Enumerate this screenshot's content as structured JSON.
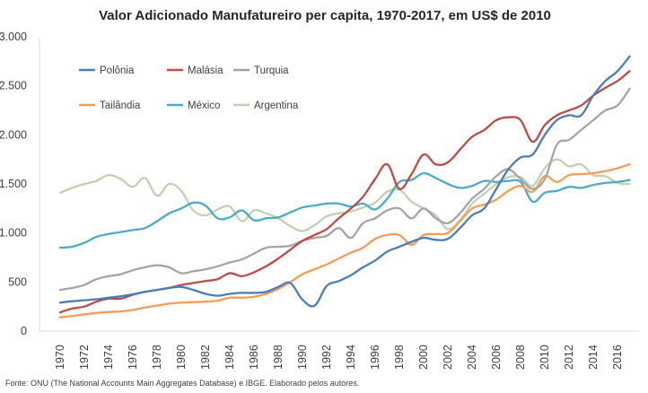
{
  "chart_data": {
    "type": "line",
    "title": "Valor Adicionado Manufatureiro per capita, 1970-2017, em US$ de 2010",
    "xlabel": "",
    "ylabel": "",
    "ylim": [
      0,
      3000
    ],
    "xlim": [
      1970,
      2017
    ],
    "grid": false,
    "legend_position": "top-left",
    "y_ticks": [
      0,
      500,
      1000,
      1500,
      2000,
      2500,
      3000
    ],
    "y_tick_labels": [
      "0",
      "500",
      "1.000",
      "1.500",
      "2.000",
      "2.500",
      "3.000"
    ],
    "x_tick_labels": [
      "1970",
      "1972",
      "1974",
      "1976",
      "1978",
      "1980",
      "1982",
      "1984",
      "1986",
      "1988",
      "1990",
      "1992",
      "1994",
      "1996",
      "1998",
      "2000",
      "2002",
      "2004",
      "2006",
      "2008",
      "2010",
      "2012",
      "2014",
      "2016"
    ],
    "x": [
      1970,
      1971,
      1972,
      1973,
      1974,
      1975,
      1976,
      1977,
      1978,
      1979,
      1980,
      1981,
      1982,
      1983,
      1984,
      1985,
      1986,
      1987,
      1988,
      1989,
      1990,
      1991,
      1992,
      1993,
      1994,
      1995,
      1996,
      1997,
      1998,
      1999,
      2000,
      2001,
      2002,
      2003,
      2004,
      2005,
      2006,
      2007,
      2008,
      2009,
      2010,
      2011,
      2012,
      2013,
      2014,
      2015,
      2016,
      2017
    ],
    "series": [
      {
        "name": "Polônia",
        "color": "#4a7ebb",
        "values": [
          290,
          305,
          315,
          325,
          340,
          355,
          375,
          400,
          420,
          440,
          450,
          420,
          380,
          360,
          380,
          390,
          390,
          400,
          450,
          490,
          320,
          260,
          460,
          510,
          570,
          650,
          720,
          810,
          860,
          910,
          950,
          930,
          940,
          1050,
          1180,
          1250,
          1450,
          1650,
          1770,
          1800,
          2000,
          2150,
          2200,
          2200,
          2400,
          2550,
          2650,
          2800
        ]
      },
      {
        "name": "Malásia",
        "color": "#be4b48",
        "values": [
          190,
          230,
          250,
          300,
          330,
          330,
          370,
          400,
          420,
          440,
          470,
          490,
          510,
          530,
          590,
          560,
          600,
          660,
          740,
          830,
          920,
          980,
          1040,
          1150,
          1250,
          1370,
          1550,
          1700,
          1450,
          1600,
          1800,
          1700,
          1720,
          1850,
          1980,
          2050,
          2150,
          2180,
          2150,
          1930,
          2100,
          2200,
          2250,
          2300,
          2400,
          2480,
          2550,
          2650
        ]
      },
      {
        "name": "Turquia",
        "color": "#a5a5a5",
        "values": [
          420,
          440,
          470,
          530,
          560,
          580,
          620,
          650,
          670,
          650,
          590,
          610,
          630,
          660,
          700,
          730,
          790,
          850,
          860,
          870,
          920,
          950,
          970,
          1050,
          950,
          1100,
          1150,
          1230,
          1250,
          1150,
          1250,
          1150,
          1100,
          1200,
          1350,
          1450,
          1580,
          1650,
          1550,
          1450,
          1550,
          1900,
          1950,
          2050,
          2150,
          2250,
          2300,
          2470
        ]
      },
      {
        "name": "Tailândia",
        "color": "#f59d56",
        "values": [
          140,
          155,
          170,
          185,
          195,
          200,
          215,
          240,
          260,
          280,
          290,
          295,
          300,
          310,
          340,
          340,
          350,
          380,
          430,
          500,
          580,
          630,
          680,
          740,
          800,
          850,
          940,
          980,
          980,
          880,
          980,
          990,
          1000,
          1120,
          1250,
          1290,
          1340,
          1430,
          1480,
          1420,
          1580,
          1520,
          1590,
          1600,
          1610,
          1630,
          1660,
          1700
        ]
      },
      {
        "name": "México",
        "color": "#4bacc6",
        "values": [
          850,
          860,
          900,
          960,
          990,
          1010,
          1030,
          1050,
          1120,
          1200,
          1250,
          1310,
          1280,
          1150,
          1160,
          1230,
          1130,
          1150,
          1160,
          1210,
          1260,
          1280,
          1300,
          1300,
          1270,
          1300,
          1240,
          1350,
          1520,
          1540,
          1610,
          1560,
          1500,
          1460,
          1480,
          1530,
          1520,
          1530,
          1520,
          1320,
          1410,
          1430,
          1470,
          1460,
          1490,
          1510,
          1520,
          1540
        ]
      },
      {
        "name": "Argentina",
        "color": "#c4d0b2",
        "values": [
          1410,
          1460,
          1500,
          1530,
          1590,
          1550,
          1470,
          1560,
          1380,
          1500,
          1430,
          1230,
          1180,
          1240,
          1270,
          1120,
          1230,
          1200,
          1150,
          1070,
          1020,
          1080,
          1170,
          1200,
          1220,
          1260,
          1310,
          1420,
          1440,
          1320,
          1250,
          1180,
          1040,
          1130,
          1300,
          1400,
          1500,
          1570,
          1570,
          1480,
          1660,
          1750,
          1680,
          1700,
          1590,
          1580,
          1510,
          1500
        ]
      }
    ],
    "source_note": "Fonte: ONU (The National Accounts Main Aggregates Database) e IBGE. Elaborado pelos autores."
  }
}
